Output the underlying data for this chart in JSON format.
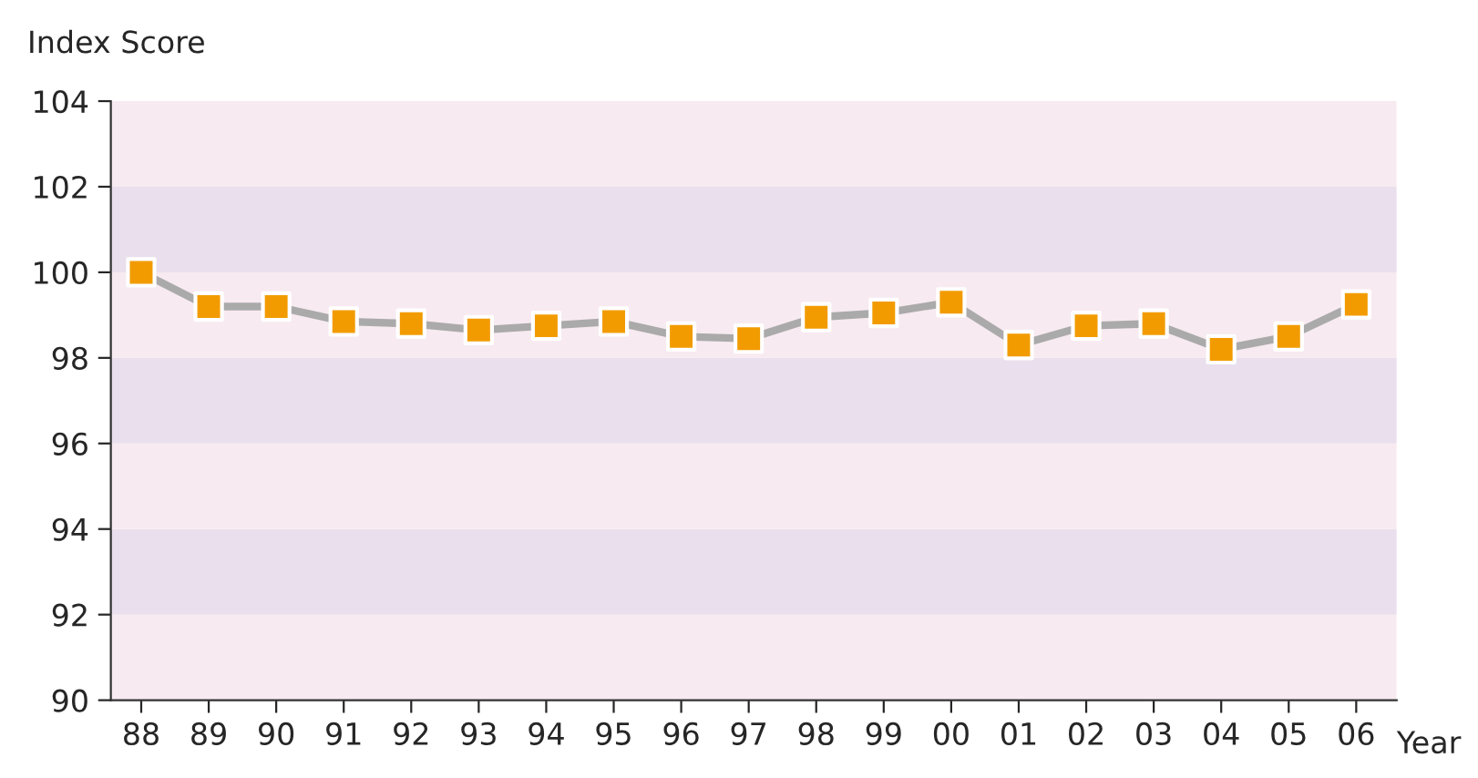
{
  "chart_data": {
    "type": "line",
    "ylabel": "Index Score",
    "xlabel": "Year",
    "categories": [
      "88",
      "89",
      "90",
      "91",
      "92",
      "93",
      "94",
      "95",
      "96",
      "97",
      "98",
      "99",
      "00",
      "01",
      "02",
      "03",
      "04",
      "05",
      "06"
    ],
    "series": [
      {
        "color": "#f29b00",
        "values": [
          100,
          99.2,
          99.2,
          98.85,
          98.8,
          98.65,
          98.75,
          98.85,
          98.5,
          98.45,
          98.95,
          99.05,
          99.3,
          98.3,
          98.75,
          98.8,
          98.2,
          98.5,
          99.25
        ]
      }
    ],
    "ylim": [
      90,
      104
    ],
    "yticks": [
      90,
      92,
      94,
      96,
      98,
      100,
      102,
      104
    ],
    "bands": [
      {
        "axis": "y",
        "from": 90,
        "to": 92,
        "color": "#f7eaf0"
      },
      {
        "axis": "y",
        "from": 92,
        "to": 94,
        "color": "#eadfec"
      },
      {
        "axis": "y",
        "from": 94,
        "to": 96,
        "color": "#f7eaf0"
      },
      {
        "axis": "y",
        "from": 96,
        "to": 98,
        "color": "#eadfec"
      },
      {
        "axis": "y",
        "from": 98,
        "to": 100,
        "color": "#f7eaf0"
      },
      {
        "axis": "y",
        "from": 100,
        "to": 102,
        "color": "#eadfec"
      },
      {
        "axis": "y",
        "from": 102,
        "to": 104,
        "color": "#f7eaf0"
      }
    ],
    "marker": "square",
    "line_style": "solid",
    "grid": false,
    "legend": false
  }
}
